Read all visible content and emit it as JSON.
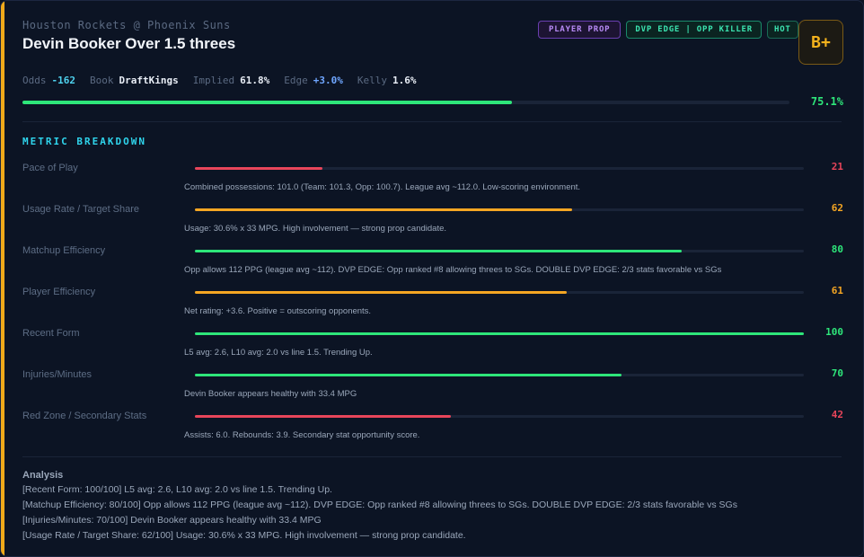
{
  "header": {
    "matchup": "Houston Rockets @ Phoenix Suns",
    "title": "Devin Booker Over 1.5 threes",
    "tags": [
      "PLAYER PROP",
      "DVP EDGE | OPP KILLER",
      "HOT"
    ],
    "grade": "B+"
  },
  "stats": {
    "odds_label": "Odds",
    "odds_value": "-162",
    "book_label": "Book",
    "book_value": "DraftKings",
    "implied_label": "Implied",
    "implied_value": "61.8%",
    "edge_label": "Edge",
    "edge_value": "+3.0%",
    "kelly_label": "Kelly",
    "kelly_value": "1.6%"
  },
  "confidence": {
    "value": 75.1,
    "label": "75.1%"
  },
  "section_title": "METRIC BREAKDOWN",
  "metrics": [
    {
      "label": "Pace of Play",
      "score": 21,
      "score_text": "21",
      "color": "#e8455a",
      "desc": "Combined possessions: 101.0 (Team: 101.3, Opp: 100.7). League avg ~112.0. Low-scoring environment."
    },
    {
      "label": "Usage Rate / Target Share",
      "score": 62,
      "score_text": "62",
      "color": "#f5a623",
      "desc": "Usage: 30.6% x 33 MPG. High involvement — strong prop candidate."
    },
    {
      "label": "Matchup Efficiency",
      "score": 80,
      "score_text": "80",
      "color": "#2ee67a",
      "desc": "Opp allows 112 PPG (league avg ~112). DVP EDGE: Opp ranked #8 allowing threes to SGs. DOUBLE DVP EDGE: 2/3 stats favorable vs SGs"
    },
    {
      "label": "Player Efficiency",
      "score": 61,
      "score_text": "61",
      "color": "#f5a623",
      "desc": "Net rating: +3.6. Positive = outscoring opponents."
    },
    {
      "label": "Recent Form",
      "score": 100,
      "score_text": "100",
      "color": "#2ee67a",
      "desc": "L5 avg: 2.6, L10 avg: 2.0 vs line 1.5. Trending Up."
    },
    {
      "label": "Injuries/Minutes",
      "score": 70,
      "score_text": "70",
      "color": "#2ee67a",
      "desc": "Devin Booker appears healthy with 33.4 MPG"
    },
    {
      "label": "Red Zone / Secondary Stats",
      "score": 42,
      "score_text": "42",
      "color": "#e8455a",
      "desc": "Assists: 6.0. Rebounds: 3.9. Secondary stat opportunity score."
    }
  ],
  "analysis": {
    "title": "Analysis",
    "lines": [
      "[Recent Form: 100/100] L5 avg: 2.6, L10 avg: 2.0 vs line 1.5. Trending Up.",
      "[Matchup Efficiency: 80/100] Opp allows 112 PPG (league avg ~112). DVP EDGE: Opp ranked #8 allowing threes to SGs. DOUBLE DVP EDGE: 2/3 stats favorable vs SGs",
      "[Injuries/Minutes: 70/100] Devin Booker appears healthy with 33.4 MPG",
      "[Usage Rate / Target Share: 62/100] Usage: 30.6% x 33 MPG. High involvement — strong prop candidate."
    ]
  }
}
